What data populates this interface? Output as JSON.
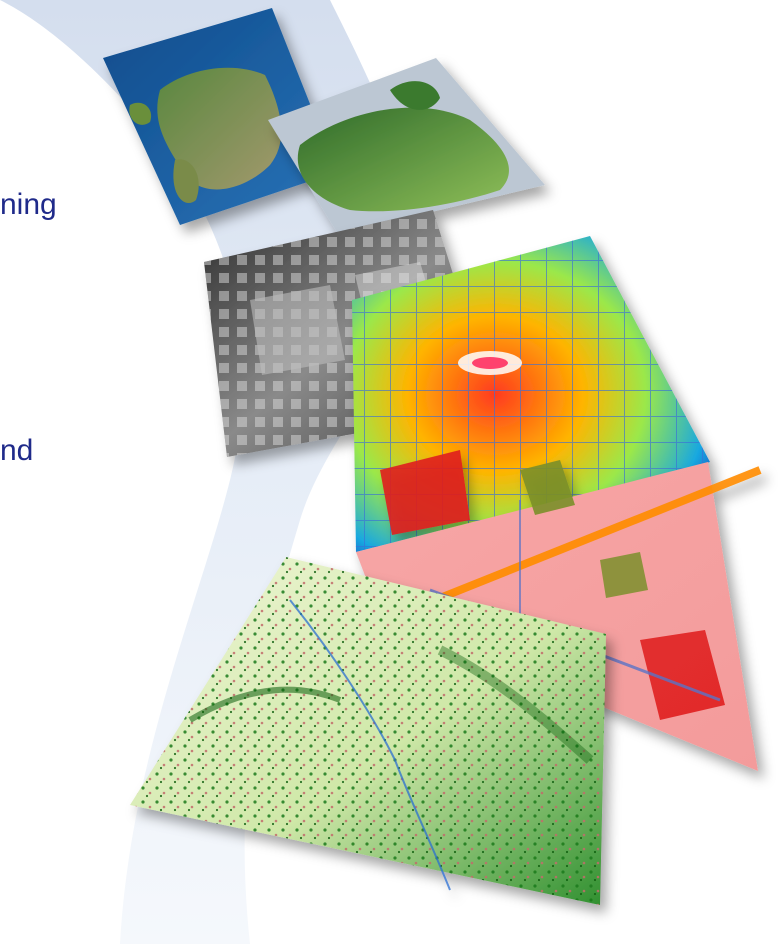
{
  "text_fragments": {
    "line1": "ning",
    "line2": "nd"
  },
  "colors": {
    "text": "#1f2a8a",
    "swoosh": "#dfe7f3"
  },
  "tiles": [
    {
      "name": "europe-satellite-map",
      "kind": "photo"
    },
    {
      "name": "europe-vegetation-map",
      "kind": "photo"
    },
    {
      "name": "city-3d-grayscale-model",
      "kind": "photo"
    },
    {
      "name": "city-thermal-heatmap",
      "kind": "photo"
    },
    {
      "name": "land-use-classification-map",
      "kind": "photo"
    },
    {
      "name": "vegetation-density-map",
      "kind": "photo"
    }
  ]
}
